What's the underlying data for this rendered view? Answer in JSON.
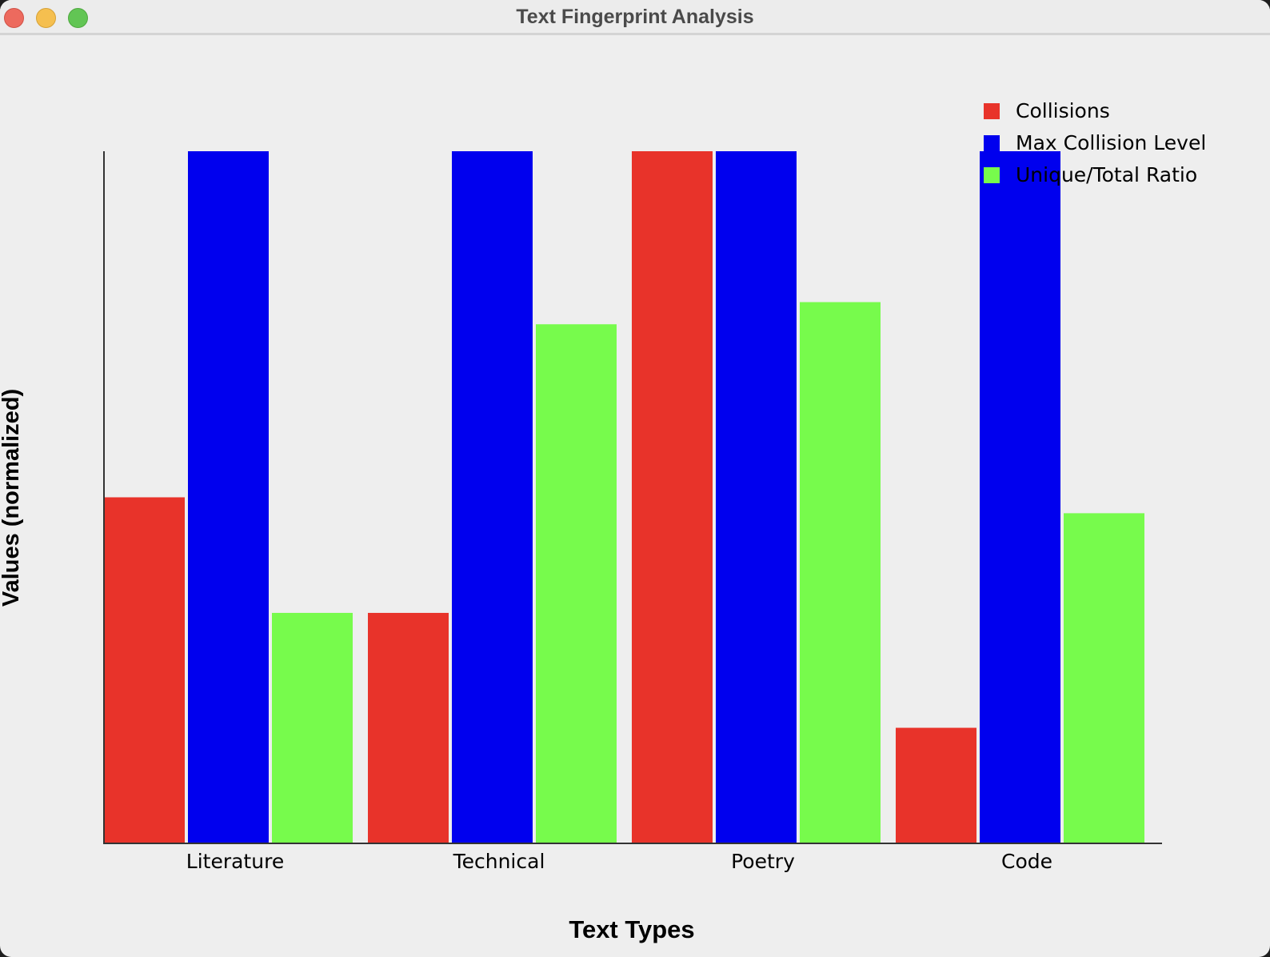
{
  "window": {
    "title": "Text Fingerprint Analysis"
  },
  "colors": {
    "window_bg": "#eeeeee",
    "axis": "#333333",
    "text": "#000000"
  },
  "chart_data": {
    "type": "bar",
    "categories": [
      "Literature",
      "Technical",
      "Poetry",
      "Code"
    ],
    "series": [
      {
        "name": "Collisions",
        "color": "#e8332a",
        "values": [
          0.5,
          0.333,
          1.0,
          0.167
        ]
      },
      {
        "name": "Max Collision Level",
        "color": "#0000ee",
        "values": [
          1.0,
          1.0,
          1.0,
          1.0
        ]
      },
      {
        "name": "Unique/Total Ratio",
        "color": "#77fb4c",
        "values": [
          0.333,
          0.75,
          0.782,
          0.477
        ]
      }
    ],
    "title": "",
    "xlabel": "Text Types",
    "ylabel": "Values (normalized)",
    "ylim": [
      0,
      1
    ],
    "grid": false,
    "legend_position": "top-right"
  }
}
